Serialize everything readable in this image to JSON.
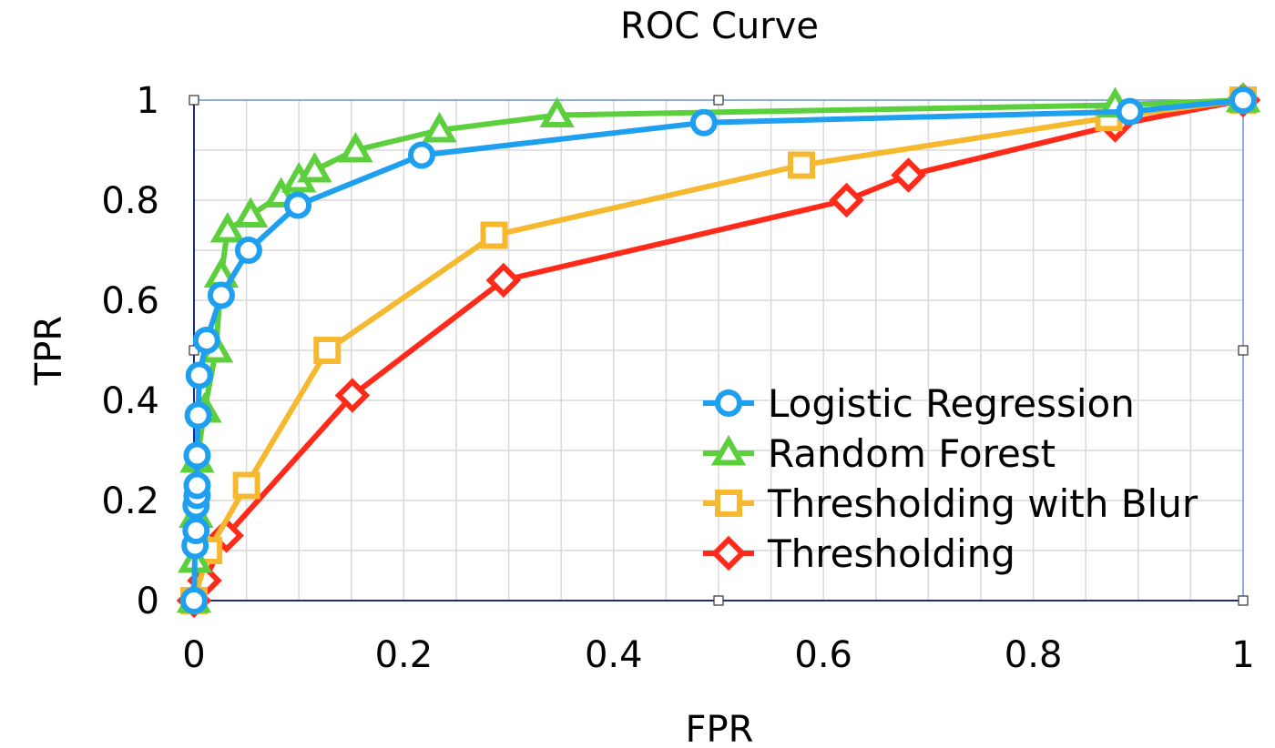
{
  "chart_data": {
    "type": "line",
    "title": "ROC Curve",
    "xlabel": "FPR",
    "ylabel": "TPR",
    "xlim": [
      0,
      1
    ],
    "ylim": [
      0,
      1
    ],
    "x_ticks": [
      "0",
      "0.2",
      "0.4",
      "0.6",
      "0.8",
      "1"
    ],
    "y_ticks": [
      "0",
      "0.2",
      "0.4",
      "0.6",
      "0.8",
      "1"
    ],
    "grid": true,
    "legend_position": "bottom-right",
    "series": [
      {
        "name": "Logistic Regression",
        "color": "#1E9FEF",
        "marker": "circle",
        "x": [
          0,
          0.001,
          0.002,
          0.002,
          0.003,
          0.003,
          0.003,
          0.004,
          0.005,
          0.012,
          0.026,
          0.052,
          0.099,
          0.217,
          0.486,
          0.892,
          1
        ],
        "y": [
          0,
          0.11,
          0.14,
          0.19,
          0.21,
          0.23,
          0.29,
          0.37,
          0.45,
          0.52,
          0.61,
          0.7,
          0.79,
          0.89,
          0.955,
          0.977,
          1
        ]
      },
      {
        "name": "Random Forest",
        "color": "#5BD03C",
        "marker": "triangle",
        "x": [
          0,
          0.001,
          0.002,
          0.003,
          0.01,
          0.021,
          0.026,
          0.032,
          0.054,
          0.083,
          0.1,
          0.115,
          0.154,
          0.234,
          0.346,
          0.878,
          1
        ],
        "y": [
          0,
          0.08,
          0.17,
          0.28,
          0.38,
          0.5,
          0.65,
          0.74,
          0.77,
          0.81,
          0.84,
          0.86,
          0.9,
          0.94,
          0.97,
          0.99,
          1
        ]
      },
      {
        "name": "Thresholding with Blur",
        "color": "#F5B82E",
        "marker": "square",
        "x": [
          0,
          0.014,
          0.05,
          0.127,
          0.286,
          0.579,
          0.872,
          1
        ],
        "y": [
          0,
          0.1,
          0.23,
          0.5,
          0.73,
          0.87,
          0.965,
          1
        ]
      },
      {
        "name": "Thresholding",
        "color": "#FF2A1A",
        "marker": "diamond",
        "x": [
          0,
          0.01,
          0.031,
          0.151,
          0.295,
          0.622,
          0.681,
          0.878,
          1
        ],
        "y": [
          0,
          0.04,
          0.13,
          0.41,
          0.64,
          0.8,
          0.85,
          0.95,
          1
        ]
      }
    ]
  }
}
